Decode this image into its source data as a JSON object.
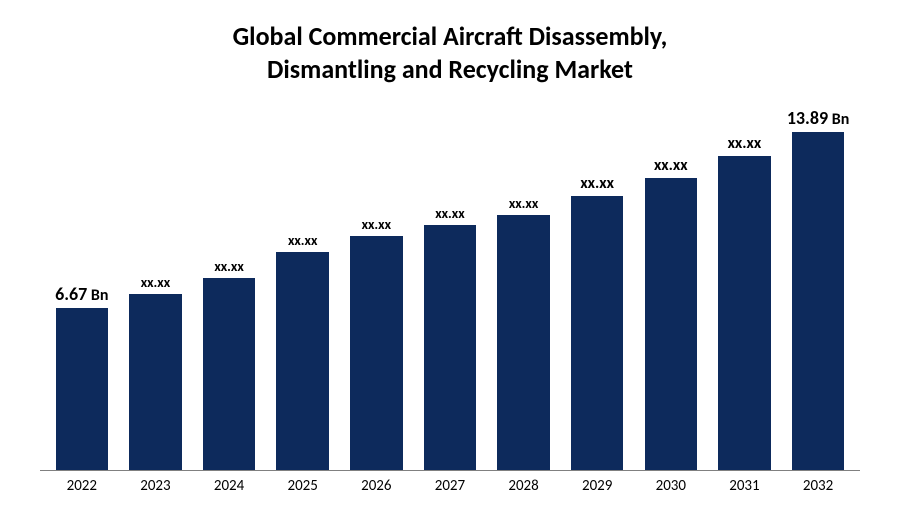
{
  "chart": {
    "type": "bar",
    "title_line1": "Global Commercial Aircraft Disassembly,",
    "title_line2": "Dismantling and Recycling Market",
    "title_fontsize": 26,
    "title_color": "#000000",
    "background_color": "#ffffff",
    "bar_color": "#0d2a5c",
    "axis_color": "#808080",
    "ymax": 15,
    "bars": [
      {
        "year": "2022",
        "value": 6.67,
        "label": "6.67",
        "suffix": "Bn",
        "label_fontsize": 18,
        "label_weight": 700
      },
      {
        "year": "2023",
        "value": 7.25,
        "label": "xx.xx",
        "suffix": "",
        "label_fontsize": 14,
        "label_weight": 700
      },
      {
        "year": "2024",
        "value": 7.9,
        "label": "xx.xx",
        "suffix": "",
        "label_fontsize": 14,
        "label_weight": 700
      },
      {
        "year": "2025",
        "value": 8.95,
        "label": "xx.xx",
        "suffix": "",
        "label_fontsize": 14,
        "label_weight": 700
      },
      {
        "year": "2026",
        "value": 9.6,
        "label": "xx.xx",
        "suffix": "",
        "label_fontsize": 14,
        "label_weight": 700
      },
      {
        "year": "2027",
        "value": 10.05,
        "label": "xx.xx",
        "suffix": "",
        "label_fontsize": 14,
        "label_weight": 700
      },
      {
        "year": "2028",
        "value": 10.5,
        "label": "xx.xx",
        "suffix": "",
        "label_fontsize": 14,
        "label_weight": 700
      },
      {
        "year": "2029",
        "value": 11.25,
        "label": "xx.xx",
        "suffix": "",
        "label_fontsize": 16,
        "label_weight": 700
      },
      {
        "year": "2030",
        "value": 12.0,
        "label": "xx.xx",
        "suffix": "",
        "label_fontsize": 16,
        "label_weight": 700
      },
      {
        "year": "2031",
        "value": 12.9,
        "label": "xx.xx",
        "suffix": "",
        "label_fontsize": 16,
        "label_weight": 700
      },
      {
        "year": "2032",
        "value": 13.89,
        "label": "13.89",
        "suffix": "Bn",
        "label_fontsize": 18,
        "label_weight": 700
      }
    ],
    "xlabel_fontsize": 15,
    "xlabel_color": "#000000"
  }
}
